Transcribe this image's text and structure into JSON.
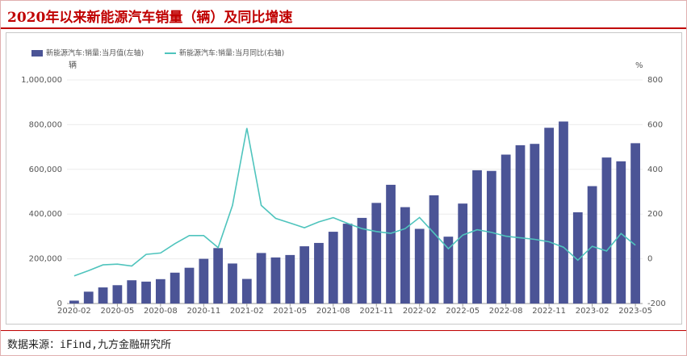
{
  "title": "2020年以来新能源汽车销量（辆）及同比增速",
  "source": "数据来源：iFind,九方金融研究所",
  "chart_data": {
    "type": "bar-line",
    "ylabel": "辆",
    "y2label": "%",
    "categories": [
      "2020-02",
      null,
      null,
      "2020-05",
      null,
      null,
      "2020-08",
      null,
      null,
      "2020-11",
      null,
      null,
      "2021-02",
      null,
      null,
      "2021-05",
      null,
      null,
      "2021-08",
      null,
      null,
      "2021-11",
      null,
      null,
      "2022-02",
      null,
      null,
      "2022-05",
      null,
      null,
      "2022-08",
      null,
      null,
      "2022-11",
      null,
      null,
      "2023-02",
      null,
      null,
      "2023-05"
    ],
    "series": [
      {
        "name": "新能源汽车:销量:当月值(左轴)",
        "color": "#4b5496",
        "axis": "y",
        "values": [
          13000,
          53000,
          72000,
          82000,
          104000,
          98000,
          109000,
          138000,
          160000,
          200000,
          248000,
          179000,
          110000,
          226000,
          206000,
          217000,
          256000,
          271000,
          321000,
          357000,
          383000,
          450000,
          531000,
          431000,
          334000,
          484000,
          299000,
          447000,
          596000,
          593000,
          666000,
          708000,
          714000,
          786000,
          814000,
          408000,
          525000,
          653000,
          636000,
          717000
        ]
      },
      {
        "name": "新能源汽车:销量:当月同比(右轴)",
        "color": "#4fc4bd",
        "axis": "y2",
        "values": [
          -76,
          -53,
          -27,
          -24,
          -32,
          20,
          26,
          68,
          104,
          104,
          50,
          239,
          585,
          239,
          181,
          160,
          139,
          165,
          184,
          158,
          135,
          122,
          114,
          135,
          185,
          115,
          45,
          106,
          130,
          118,
          101,
          94,
          87,
          76,
          52,
          -6,
          56,
          35,
          113,
          61
        ]
      }
    ],
    "ylim": [
      0,
      1000000
    ],
    "yticks": [
      0,
      {
        "value": 200000,
        "label": "200,000"
      },
      {
        "value": 400000,
        "label": "400,000"
      },
      {
        "value": 600000,
        "label": "600,000"
      },
      {
        "value": 800000,
        "label": "800,000"
      },
      {
        "value": 1000000,
        "label": "1,000,000"
      }
    ],
    "y2lim": [
      -200,
      800
    ],
    "y2ticks": [
      -200,
      0,
      200,
      400,
      600,
      800
    ],
    "grid": true,
    "legend": "top-left"
  }
}
